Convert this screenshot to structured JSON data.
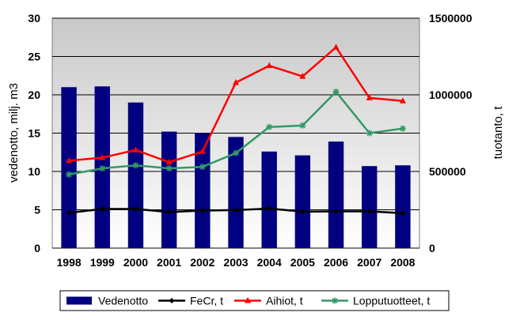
{
  "chart_data": {
    "type": "bar",
    "categories": [
      "1998",
      "1999",
      "2000",
      "2001",
      "2002",
      "2003",
      "2004",
      "2005",
      "2006",
      "2007",
      "2008"
    ],
    "bar_series": {
      "name": "Vedenotto",
      "axis": "left",
      "color": "#000080",
      "values": [
        21.0,
        21.1,
        19.0,
        15.2,
        15.0,
        14.5,
        12.6,
        12.1,
        13.9,
        10.7,
        10.8
      ]
    },
    "line_series": [
      {
        "name": "FeCr, t",
        "axis": "right",
        "color": "#000000",
        "marker": "diamond",
        "values": [
          230000,
          255000,
          255000,
          235000,
          245000,
          248000,
          258000,
          238000,
          240000,
          240000,
          228000
        ]
      },
      {
        "name": "Aihiot, t",
        "axis": "right",
        "color": "#ff0000",
        "marker": "triangle",
        "values": [
          570000,
          590000,
          640000,
          560000,
          630000,
          1080000,
          1190000,
          1120000,
          1310000,
          980000,
          960000
        ]
      },
      {
        "name": "Lopputuotteet, t",
        "axis": "right",
        "color": "#339966",
        "marker": "star",
        "values": [
          480000,
          520000,
          540000,
          520000,
          530000,
          620000,
          790000,
          800000,
          1020000,
          750000,
          780000
        ]
      }
    ],
    "ylabel_left": "vedenotto, milj. m3",
    "ylabel_right": "tuotanto, t",
    "ylim_left": [
      0,
      30
    ],
    "ylim_right": [
      0,
      1500000
    ],
    "yticks_left": [
      "0",
      "5",
      "10",
      "15",
      "20",
      "25",
      "30"
    ],
    "yticks_right": [
      "0",
      "500000",
      "1000000",
      "1500000"
    ],
    "grid": true,
    "legend_position": "bottom",
    "plot_background": "gradient-gray-to-white"
  }
}
